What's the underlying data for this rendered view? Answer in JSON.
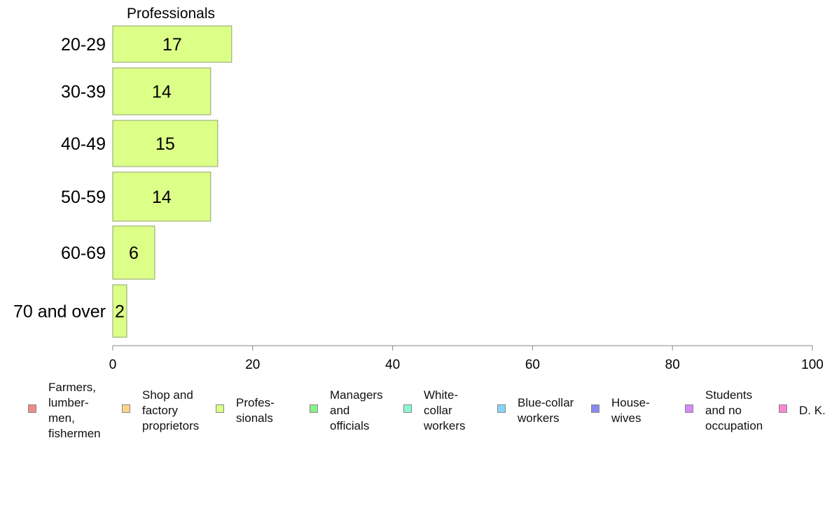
{
  "chart_data": {
    "type": "bar",
    "orientation": "horizontal",
    "title": "Professionals",
    "categories": [
      "20-29",
      "30-39",
      "40-49",
      "50-59",
      "60-69",
      "70 and over"
    ],
    "series": [
      {
        "name": "Profes-\nsionals",
        "values": [
          17,
          14,
          15,
          14,
          6,
          2
        ],
        "color": "#dcff88"
      }
    ],
    "xlim": [
      0,
      100
    ],
    "xticks": [
      0,
      20,
      40,
      60,
      80,
      100
    ],
    "grid": false,
    "legend_position": "bottom",
    "legend": [
      {
        "label": "Farmers,\nlumber-\nmen,\nfishermen",
        "color": "#f08a8a"
      },
      {
        "label": "Shop and\nfactory\nproprietors",
        "color": "#ffd48a"
      },
      {
        "label": "Profes-\nsionals",
        "color": "#dcff88"
      },
      {
        "label": "Managers\nand\nofficials",
        "color": "#88f08a"
      },
      {
        "label": "White-\ncollar\nworkers",
        "color": "#88f8d8"
      },
      {
        "label": "Blue-collar\nworkers",
        "color": "#88d4f8"
      },
      {
        "label": "House-\nwives",
        "color": "#8a88f0"
      },
      {
        "label": "Students\nand no\noccupation",
        "color": "#d888f8"
      },
      {
        "label": "D. K.",
        "color": "#f888d0"
      }
    ]
  }
}
